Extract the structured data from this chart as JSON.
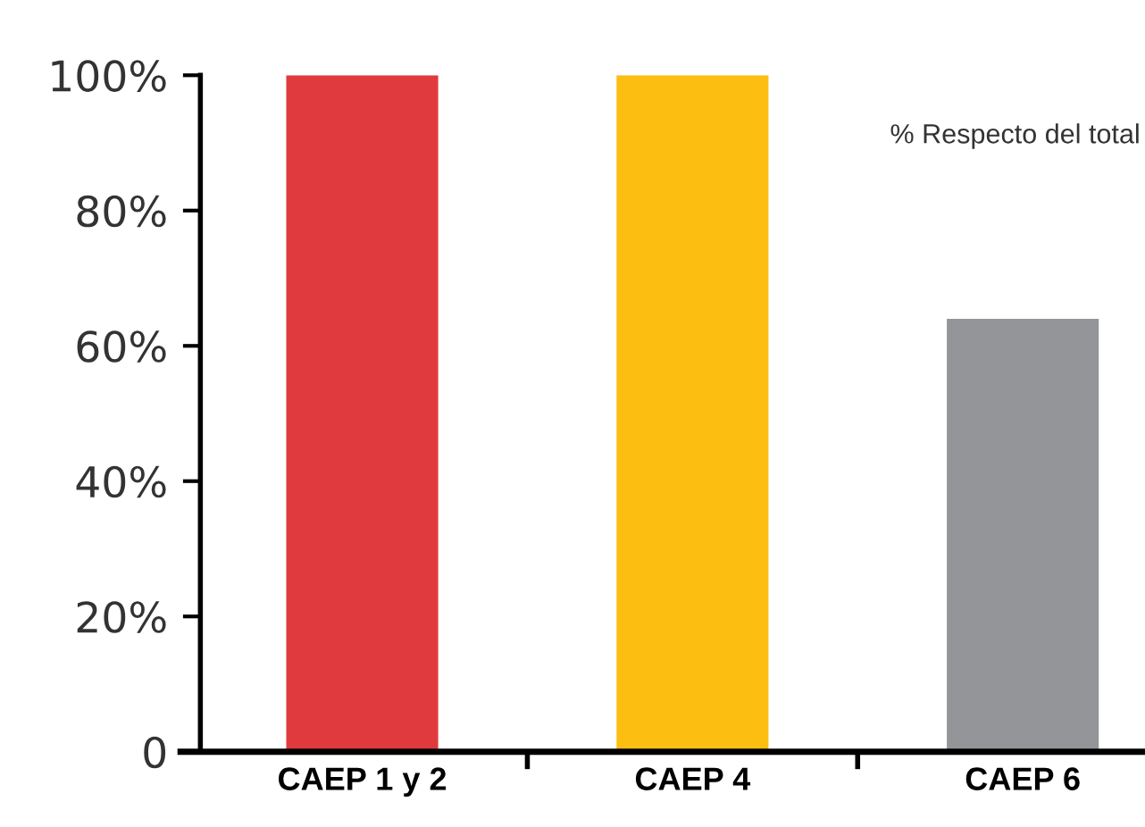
{
  "chart_data": {
    "type": "bar",
    "categories": [
      "CAEP 1 y 2",
      "CAEP 4",
      "CAEP 6"
    ],
    "values": [
      100,
      100,
      64
    ],
    "colors": [
      "#e03a3e",
      "#fcbe11",
      "#939598"
    ],
    "ylim": [
      0,
      100
    ],
    "yticks": [
      {
        "value": 0,
        "label": "0"
      },
      {
        "value": 20,
        "label": "20%"
      },
      {
        "value": 40,
        "label": "40%"
      },
      {
        "value": 60,
        "label": "60%"
      },
      {
        "value": 80,
        "label": "80%"
      },
      {
        "value": 100,
        "label": "100%"
      }
    ],
    "annotations": [
      "% Respecto del total"
    ],
    "grid": false,
    "legend": false
  }
}
